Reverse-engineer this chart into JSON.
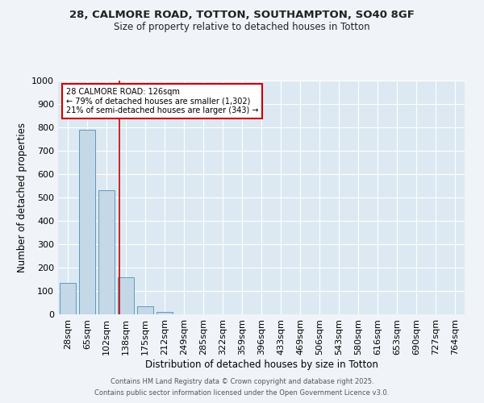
{
  "title_line1": "28, CALMORE ROAD, TOTTON, SOUTHAMPTON, SO40 8GF",
  "title_line2": "Size of property relative to detached houses in Totton",
  "xlabel": "Distribution of detached houses by size in Totton",
  "ylabel": "Number of detached properties",
  "bin_labels": [
    "28sqm",
    "65sqm",
    "102sqm",
    "138sqm",
    "175sqm",
    "212sqm",
    "249sqm",
    "285sqm",
    "322sqm",
    "359sqm",
    "396sqm",
    "433sqm",
    "469sqm",
    "506sqm",
    "543sqm",
    "580sqm",
    "616sqm",
    "653sqm",
    "690sqm",
    "727sqm",
    "764sqm"
  ],
  "bar_values": [
    135,
    790,
    530,
    160,
    35,
    10,
    0,
    0,
    0,
    0,
    0,
    0,
    0,
    0,
    0,
    0,
    0,
    0,
    0,
    0,
    0
  ],
  "bar_color": "#c5d8e8",
  "bar_edge_color": "#5b9aba",
  "annotation_text": "28 CALMORE ROAD: 126sqm\n← 79% of detached houses are smaller (1,302)\n21% of semi-detached houses are larger (343) →",
  "annotation_box_color": "#ffffff",
  "annotation_border_color": "#cc0000",
  "red_line_x": 2.67,
  "ylim": [
    0,
    1000
  ],
  "yticks": [
    0,
    100,
    200,
    300,
    400,
    500,
    600,
    700,
    800,
    900,
    1000
  ],
  "background_color": "#dce9f2",
  "grid_color": "#ffffff",
  "fig_background": "#f0f4f8",
  "footer_line1": "Contains HM Land Registry data © Crown copyright and database right 2025.",
  "footer_line2": "Contains public sector information licensed under the Open Government Licence v3.0."
}
